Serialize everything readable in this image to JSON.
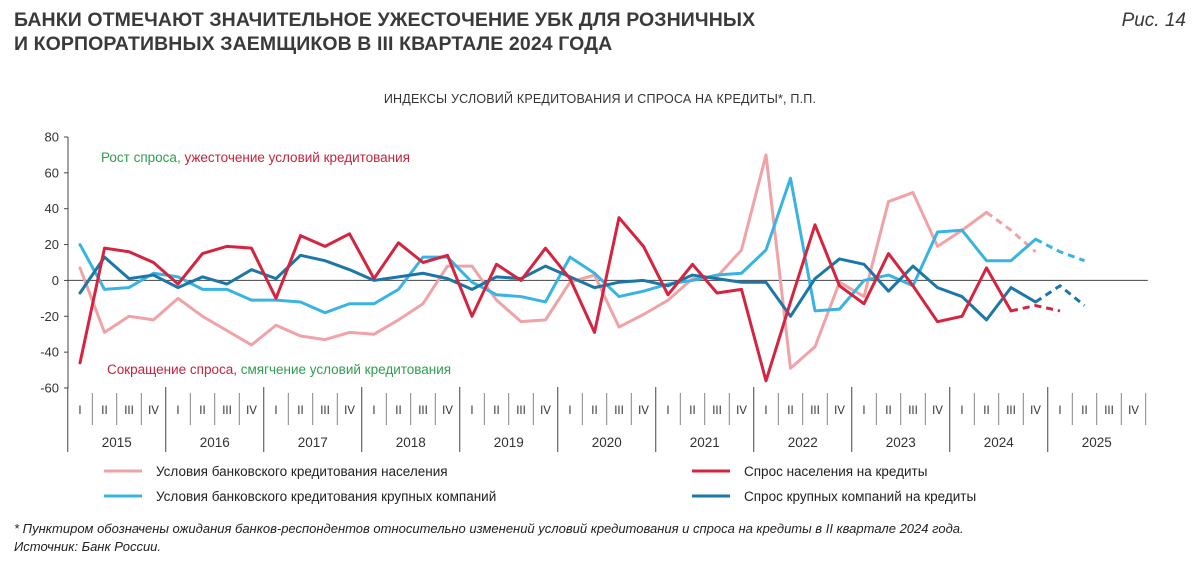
{
  "figure": {
    "title": "БАНКИ ОТМЕЧАЮТ ЗНАЧИТЕЛЬНОЕ УЖЕСТОЧЕНИЕ УБК ДЛЯ РОЗНИЧНЫХ\nИ КОРПОРАТИВНЫХ ЗАЕМЩИКОВ В III КВАРТАЛЕ 2024 ГОДА",
    "label": "Рис. 14",
    "footnote": "* Пунктиром обозначены ожидания банков-респондентов относительно изменений условий кредитования и спроса на кредиты в II квартале 2024 года.",
    "source": "Источник: Банк России."
  },
  "chart_data": {
    "type": "line",
    "title": "ИНДЕКСЫ УСЛОВИЙ КРЕДИТОВАНИЯ И СПРОСА НА КРЕДИТЫ*, П.П.",
    "ylim": [
      -60,
      80
    ],
    "yticks": [
      80,
      60,
      40,
      20,
      0,
      -20,
      -40,
      -60
    ],
    "grid": false,
    "quarter_labels": [
      "I",
      "II",
      "III",
      "IV"
    ],
    "years": [
      "2015",
      "2016",
      "2017",
      "2018",
      "2019",
      "2020",
      "2021",
      "2022",
      "2023",
      "2024",
      "2025"
    ],
    "annotations": {
      "top": [
        {
          "text": "Рост спроса,",
          "color": "#2e9e4f"
        },
        {
          "text": " ужесточение условий кредитования",
          "color": "#c8223c"
        }
      ],
      "bottom": [
        {
          "text": "Сокращение спроса,",
          "color": "#c8223c"
        },
        {
          "text": " смягчение условий кредитования",
          "color": "#2e9e4f"
        }
      ]
    },
    "series": [
      {
        "name": "Условия банковского кредитования населения",
        "color": "#f0a3a6",
        "values": [
          7,
          -29,
          -20,
          -22,
          -10,
          -20,
          -28,
          -36,
          -25,
          -31,
          -33,
          -29,
          -30,
          -22,
          -13,
          8,
          8,
          -11,
          -23,
          -22,
          -1,
          3,
          -26,
          -19,
          -11,
          1,
          2,
          17,
          70,
          -49,
          -37,
          -1,
          -9,
          44,
          49,
          19,
          28,
          38
        ],
        "forecast": [
          38,
          28,
          16
        ]
      },
      {
        "name": "Спрос населения на кредиты",
        "color": "#d4243f",
        "values": [
          -46,
          18,
          16,
          10,
          -2,
          15,
          19,
          18,
          -10,
          25,
          19,
          26,
          1,
          21,
          10,
          14,
          -20,
          9,
          0,
          18,
          1,
          -29,
          35,
          19,
          -8,
          9,
          -7,
          -5,
          -56,
          -12,
          31,
          -3,
          -13,
          15,
          -3,
          -23,
          -20,
          7,
          -17
        ],
        "forecast": [
          -17,
          -14,
          -17
        ]
      },
      {
        "name": "Условия банковского кредитования крупных компаний",
        "color": "#39b4e2",
        "values": [
          20,
          -5,
          -4,
          4,
          2,
          -5,
          -5,
          -11,
          -11,
          -12,
          -18,
          -13,
          -13,
          -5,
          13,
          13,
          -1,
          -8,
          -9,
          -12,
          13,
          4,
          -9,
          -6,
          -2,
          0,
          3,
          4,
          17,
          57,
          -17,
          -16,
          0,
          3,
          -3,
          27,
          28,
          11,
          11,
          23
        ],
        "forecast": [
          23,
          16,
          11
        ]
      },
      {
        "name": "Спрос крупных компаний на кредиты",
        "color": "#1c77a8",
        "values": [
          -7,
          13,
          1,
          3,
          -4,
          2,
          -2,
          6,
          1,
          14,
          11,
          6,
          0,
          2,
          4,
          1,
          -5,
          2,
          1,
          8,
          2,
          -4,
          -1,
          0,
          -3,
          3,
          1,
          -1,
          -1,
          -20,
          1,
          12,
          9,
          -6,
          8,
          -4,
          -9,
          -22,
          -4,
          -12
        ],
        "forecast": [
          -12,
          -3,
          -14
        ]
      }
    ],
    "legend_layout": [
      {
        "series": 0,
        "col": 0,
        "row": 0
      },
      {
        "series": 1,
        "col": 1,
        "row": 0
      },
      {
        "series": 2,
        "col": 0,
        "row": 1
      },
      {
        "series": 3,
        "col": 1,
        "row": 1
      }
    ],
    "legend_placement": "bottom"
  }
}
